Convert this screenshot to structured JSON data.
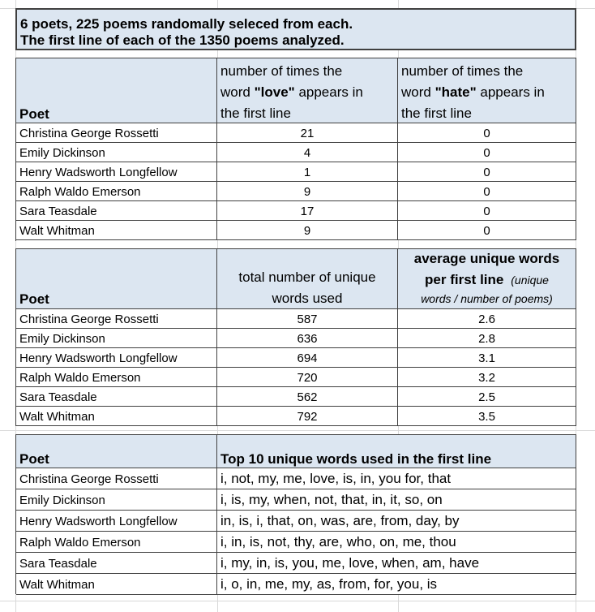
{
  "title": {
    "line1": "6 poets, 225 poems randomally seleced from each.",
    "line2": "The first line of each of the 1350 poems analyzed."
  },
  "table1": {
    "poet_header": "Poet",
    "col2_header": {
      "line1": "number of times the",
      "line2a": "word ",
      "keyword": "\"love\"",
      "line2b": " appears in",
      "line3": "the first line"
    },
    "col3_header": {
      "line1": "number of times the",
      "line2a": "word ",
      "keyword": "\"hate\"",
      "line2b": " appears in",
      "line3": "the first line"
    },
    "rows": [
      {
        "poet": "Christina George Rossetti",
        "love": "21",
        "hate": "0"
      },
      {
        "poet": "Emily Dickinson",
        "love": "4",
        "hate": "0"
      },
      {
        "poet": "Henry Wadsworth Longfellow",
        "love": "1",
        "hate": "0"
      },
      {
        "poet": "Ralph Waldo Emerson",
        "love": "9",
        "hate": "0"
      },
      {
        "poet": "Sara Teasdale",
        "love": "17",
        "hate": "0"
      },
      {
        "poet": "Walt Whitman",
        "love": "9",
        "hate": "0"
      }
    ]
  },
  "table2": {
    "poet_header": "Poet",
    "col2_header": {
      "line1": "total number of unique",
      "line2": "words used"
    },
    "col3_header": {
      "line1": "average unique words",
      "line2": "per first line",
      "note_a": "(unique",
      "note_b": "words / number of poems)"
    },
    "rows": [
      {
        "poet": "Christina George Rossetti",
        "total": "587",
        "avg": "2.6"
      },
      {
        "poet": "Emily Dickinson",
        "total": "636",
        "avg": "2.8"
      },
      {
        "poet": "Henry Wadsworth Longfellow",
        "total": "694",
        "avg": "3.1"
      },
      {
        "poet": "Ralph Waldo Emerson",
        "total": "720",
        "avg": "3.2"
      },
      {
        "poet": "Sara Teasdale",
        "total": "562",
        "avg": "2.5"
      },
      {
        "poet": "Walt Whitman",
        "total": "792",
        "avg": "3.5"
      }
    ]
  },
  "table3": {
    "poet_header": "Poet",
    "words_header": "Top 10 unique words used in the first line",
    "rows": [
      {
        "poet": "Christina George Rossetti",
        "words": "i, not, my, me, love, is, in, you for, that"
      },
      {
        "poet": "Emily Dickinson",
        "words": "i, is, my, when, not, that, in, it, so, on"
      },
      {
        "poet": "Henry Wadsworth Longfellow",
        "words": "in, is, i, that, on, was, are, from, day, by"
      },
      {
        "poet": "Ralph Waldo Emerson",
        "words": "i, in, is, not, thy, are, who, on, me, thou"
      },
      {
        "poet": "Sara Teasdale",
        "words": "i, my, in, is, you, me, love, when, am, have"
      },
      {
        "poet": "Walt Whitman",
        "words": "i, o, in, me, my, as, from, for, you, is"
      }
    ]
  },
  "colors": {
    "header_fill": "#dce6f1",
    "border": "#404040",
    "gridline": "#d9d9d9"
  }
}
